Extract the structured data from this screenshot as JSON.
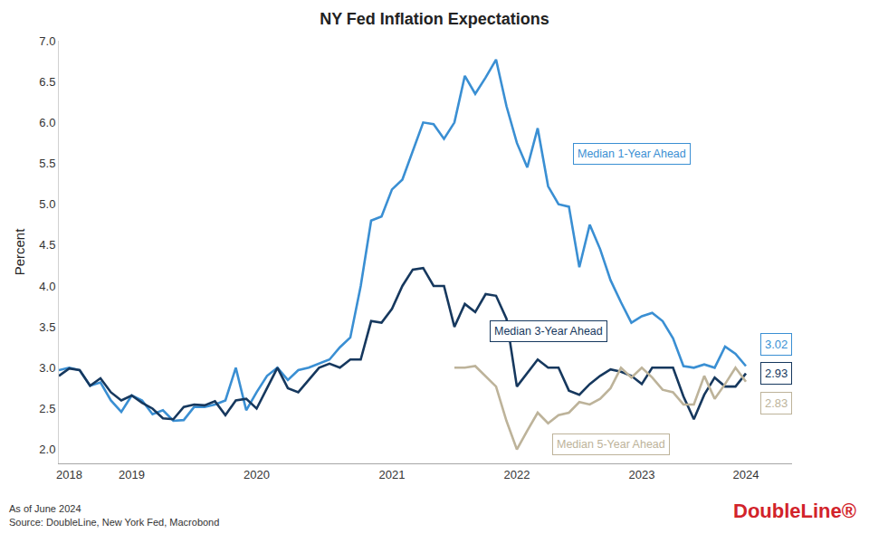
{
  "chart_data": {
    "type": "line",
    "title": "NY Fed Inflation Expectations",
    "y_label": "Percent",
    "categories": [
      null,
      "2018",
      null,
      null,
      null,
      null,
      null,
      "2019",
      null,
      null,
      null,
      null,
      null,
      null,
      null,
      null,
      null,
      null,
      null,
      "2020",
      null,
      null,
      null,
      null,
      null,
      null,
      null,
      null,
      null,
      null,
      null,
      null,
      "2021",
      null,
      null,
      null,
      null,
      null,
      null,
      null,
      null,
      null,
      null,
      null,
      "2022",
      null,
      null,
      null,
      null,
      null,
      null,
      null,
      null,
      null,
      null,
      null,
      "2023",
      null,
      null,
      null,
      null,
      null,
      null,
      null,
      null,
      null,
      "2024"
    ],
    "series": [
      {
        "name": "Median 1-Year Ahead",
        "color": "#3a8fd3",
        "values": [
          2.97,
          3.0,
          2.97,
          2.78,
          2.82,
          2.6,
          2.46,
          2.66,
          2.6,
          2.43,
          2.48,
          2.35,
          2.36,
          2.52,
          2.52,
          2.55,
          2.6,
          3.0,
          2.48,
          2.7,
          2.9,
          3.0,
          2.85,
          2.97,
          3.0,
          3.05,
          3.1,
          3.25,
          3.37,
          4.0,
          4.8,
          4.85,
          5.18,
          5.3,
          5.65,
          6.0,
          5.98,
          5.8,
          6.0,
          6.57,
          6.35,
          6.55,
          6.77,
          6.2,
          5.75,
          5.45,
          5.93,
          5.22,
          5.0,
          4.97,
          4.23,
          4.75,
          4.45,
          4.07,
          3.8,
          3.55,
          3.63,
          3.67,
          3.57,
          3.36,
          3.02,
          3.0,
          3.04,
          3.0,
          3.26,
          3.17,
          3.02
        ]
      },
      {
        "name": "Median 3-Year Ahead",
        "color": "#16385e",
        "values": [
          2.9,
          2.99,
          2.97,
          2.78,
          2.87,
          2.7,
          2.6,
          2.66,
          2.57,
          2.5,
          2.38,
          2.37,
          2.52,
          2.55,
          2.54,
          2.59,
          2.42,
          2.6,
          2.62,
          2.5,
          2.75,
          3.0,
          2.75,
          2.7,
          2.85,
          3.0,
          3.05,
          3.0,
          3.1,
          3.1,
          3.57,
          3.55,
          3.72,
          4.0,
          4.2,
          4.22,
          4.0,
          4.0,
          3.5,
          3.78,
          3.68,
          3.9,
          3.88,
          3.6,
          2.77,
          2.93,
          3.1,
          3.0,
          3.0,
          2.72,
          2.67,
          2.8,
          2.9,
          2.98,
          2.95,
          2.9,
          2.8,
          3.0,
          3.0,
          3.0,
          2.65,
          2.37,
          2.67,
          2.88,
          2.77,
          2.77,
          2.93
        ]
      },
      {
        "name": "Median 5-Year Ahead",
        "color": "#bdb39a",
        "values": [
          null,
          null,
          null,
          null,
          null,
          null,
          null,
          null,
          null,
          null,
          null,
          null,
          null,
          null,
          null,
          null,
          null,
          null,
          null,
          null,
          null,
          null,
          null,
          null,
          null,
          null,
          null,
          null,
          null,
          null,
          null,
          null,
          null,
          null,
          null,
          null,
          null,
          null,
          3.0,
          3.0,
          3.02,
          2.9,
          2.77,
          2.35,
          2.0,
          2.23,
          2.45,
          2.32,
          2.42,
          2.45,
          2.58,
          2.55,
          2.62,
          2.75,
          3.0,
          2.88,
          3.0,
          2.88,
          2.73,
          2.7,
          2.55,
          2.55,
          2.9,
          2.62,
          2.8,
          3.0,
          2.83
        ]
      }
    ],
    "ylim": [
      1.83,
      7.0
    ],
    "yticks": [
      {
        "value": 2,
        "label": "2.0"
      },
      2.5,
      {
        "value": 3,
        "label": "3.0"
      },
      3.5,
      {
        "value": 4,
        "label": "4.0"
      },
      4.5,
      {
        "value": 5,
        "label": "5.0"
      },
      5.5,
      {
        "value": 6,
        "label": "6.0"
      },
      6.5,
      {
        "value": 7,
        "label": "7.0"
      }
    ],
    "grid": false,
    "annotations": [
      {
        "text": "Median 1-Year Ahead",
        "series": "Median 1-Year Ahead",
        "x": 55,
        "y": 5.62
      },
      {
        "text": "Median 3-Year Ahead",
        "series": "Median 3-Year Ahead",
        "x": 47,
        "y": 3.45
      },
      {
        "text": "Median 5-Year Ahead",
        "series": "Median 5-Year Ahead",
        "x": 53,
        "y": 2.06
      },
      {
        "text": "3.02",
        "series": "Median 1-Year Ahead",
        "x": 66,
        "y": 3.02
      },
      {
        "text": "2.93",
        "series": "Median 3-Year Ahead",
        "x": 66,
        "y": 2.93
      },
      {
        "text": "2.83",
        "series": "Median 5-Year Ahead",
        "x": 66,
        "y": 2.83
      }
    ],
    "notes": [
      "As of June 2024",
      "Source: DoubleLine, New York Fed, Macrobond"
    ],
    "logo": "DoubleLine®"
  }
}
